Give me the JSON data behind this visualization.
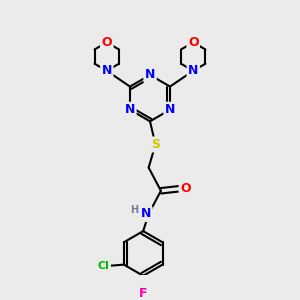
{
  "bg_color": "#ebebeb",
  "atom_colors": {
    "C": "#000000",
    "N": "#0000ff",
    "O": "#ff0000",
    "S": "#cccc00",
    "Cl": "#00bb00",
    "F": "#ff00aa",
    "H": "#708090"
  },
  "bond_color": "#000000",
  "bond_width": 1.5,
  "font_size_atom": 9
}
